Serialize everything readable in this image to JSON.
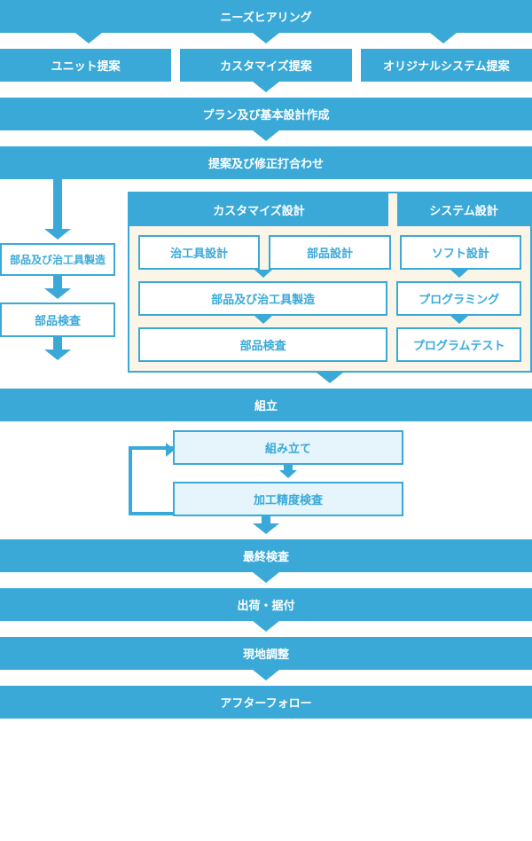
{
  "colors": {
    "primary": "#3aa9d8",
    "panel_bg": "#fbf5e8",
    "light_bg": "#e6f4fb",
    "text_blue": "#3aa9d8",
    "white": "#ffffff"
  },
  "flow": {
    "step1": "ニーズヒアリング",
    "step2": {
      "a": "ユニット提案",
      "b": "カスタマイズ提案",
      "c": "オリジナルシステム提案"
    },
    "step3": "プラン及び基本設計作成",
    "step4": "提案及び修正打合わせ",
    "left_branch": {
      "a": "部品及び治工具製造",
      "b": "部品検査"
    },
    "panel": {
      "header_left": "カスタマイズ設計",
      "header_right": "システム設計",
      "row1": {
        "a": "治工具設計",
        "b": "部品設計",
        "c": "ソフト設計"
      },
      "row2": {
        "a": "部品及び治工具製造",
        "b": "プログラミング"
      },
      "row3": {
        "a": "部品検査",
        "b": "プログラムテスト"
      }
    },
    "step5": "組立",
    "assembly": {
      "a": "組み立て",
      "b": "加工精度検査"
    },
    "step6": "最終検査",
    "step7": "出荷・据付",
    "step8": "現地調整",
    "step9": "アフターフォロー"
  },
  "style": {
    "bar_fontsize": 13,
    "arrow_height": 12,
    "arrow_height_sm": 9,
    "vline_height": 56,
    "gap": 6
  }
}
